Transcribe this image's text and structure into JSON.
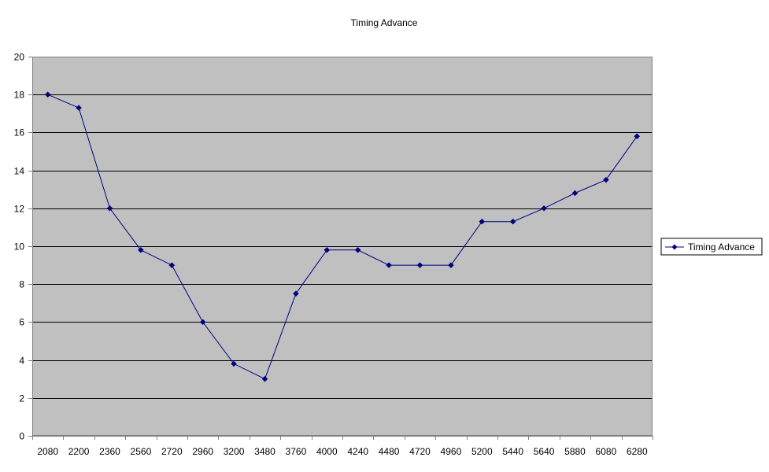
{
  "colors": {
    "plot_background": "#c0c0c0",
    "gridline": "#000000",
    "series_line": "#000080",
    "axis": "#808080",
    "legend_border": "#000000"
  },
  "chart_data": {
    "type": "line",
    "title": "Timing Advance",
    "xlabel": "",
    "ylabel": "",
    "ylim": [
      0,
      20
    ],
    "yticks": [
      "0",
      "2",
      "4",
      "6",
      "8",
      "10",
      "12",
      "14",
      "16",
      "18",
      "20"
    ],
    "grid": true,
    "legend_position": "right",
    "categories": [
      "2080",
      "2200",
      "2360",
      "2560",
      "2720",
      "2960",
      "3200",
      "3480",
      "3760",
      "4000",
      "4240",
      "4480",
      "4720",
      "4960",
      "5200",
      "5440",
      "5640",
      "5880",
      "6080",
      "6280"
    ],
    "series": [
      {
        "name": "Timing Advance",
        "marker": "diamond",
        "values": [
          18,
          17.3,
          12,
          9.8,
          9,
          6,
          3.8,
          3,
          7.5,
          9.8,
          9.8,
          9,
          9,
          9,
          11.3,
          11.3,
          12,
          12.8,
          13.5,
          15.8
        ]
      }
    ]
  }
}
